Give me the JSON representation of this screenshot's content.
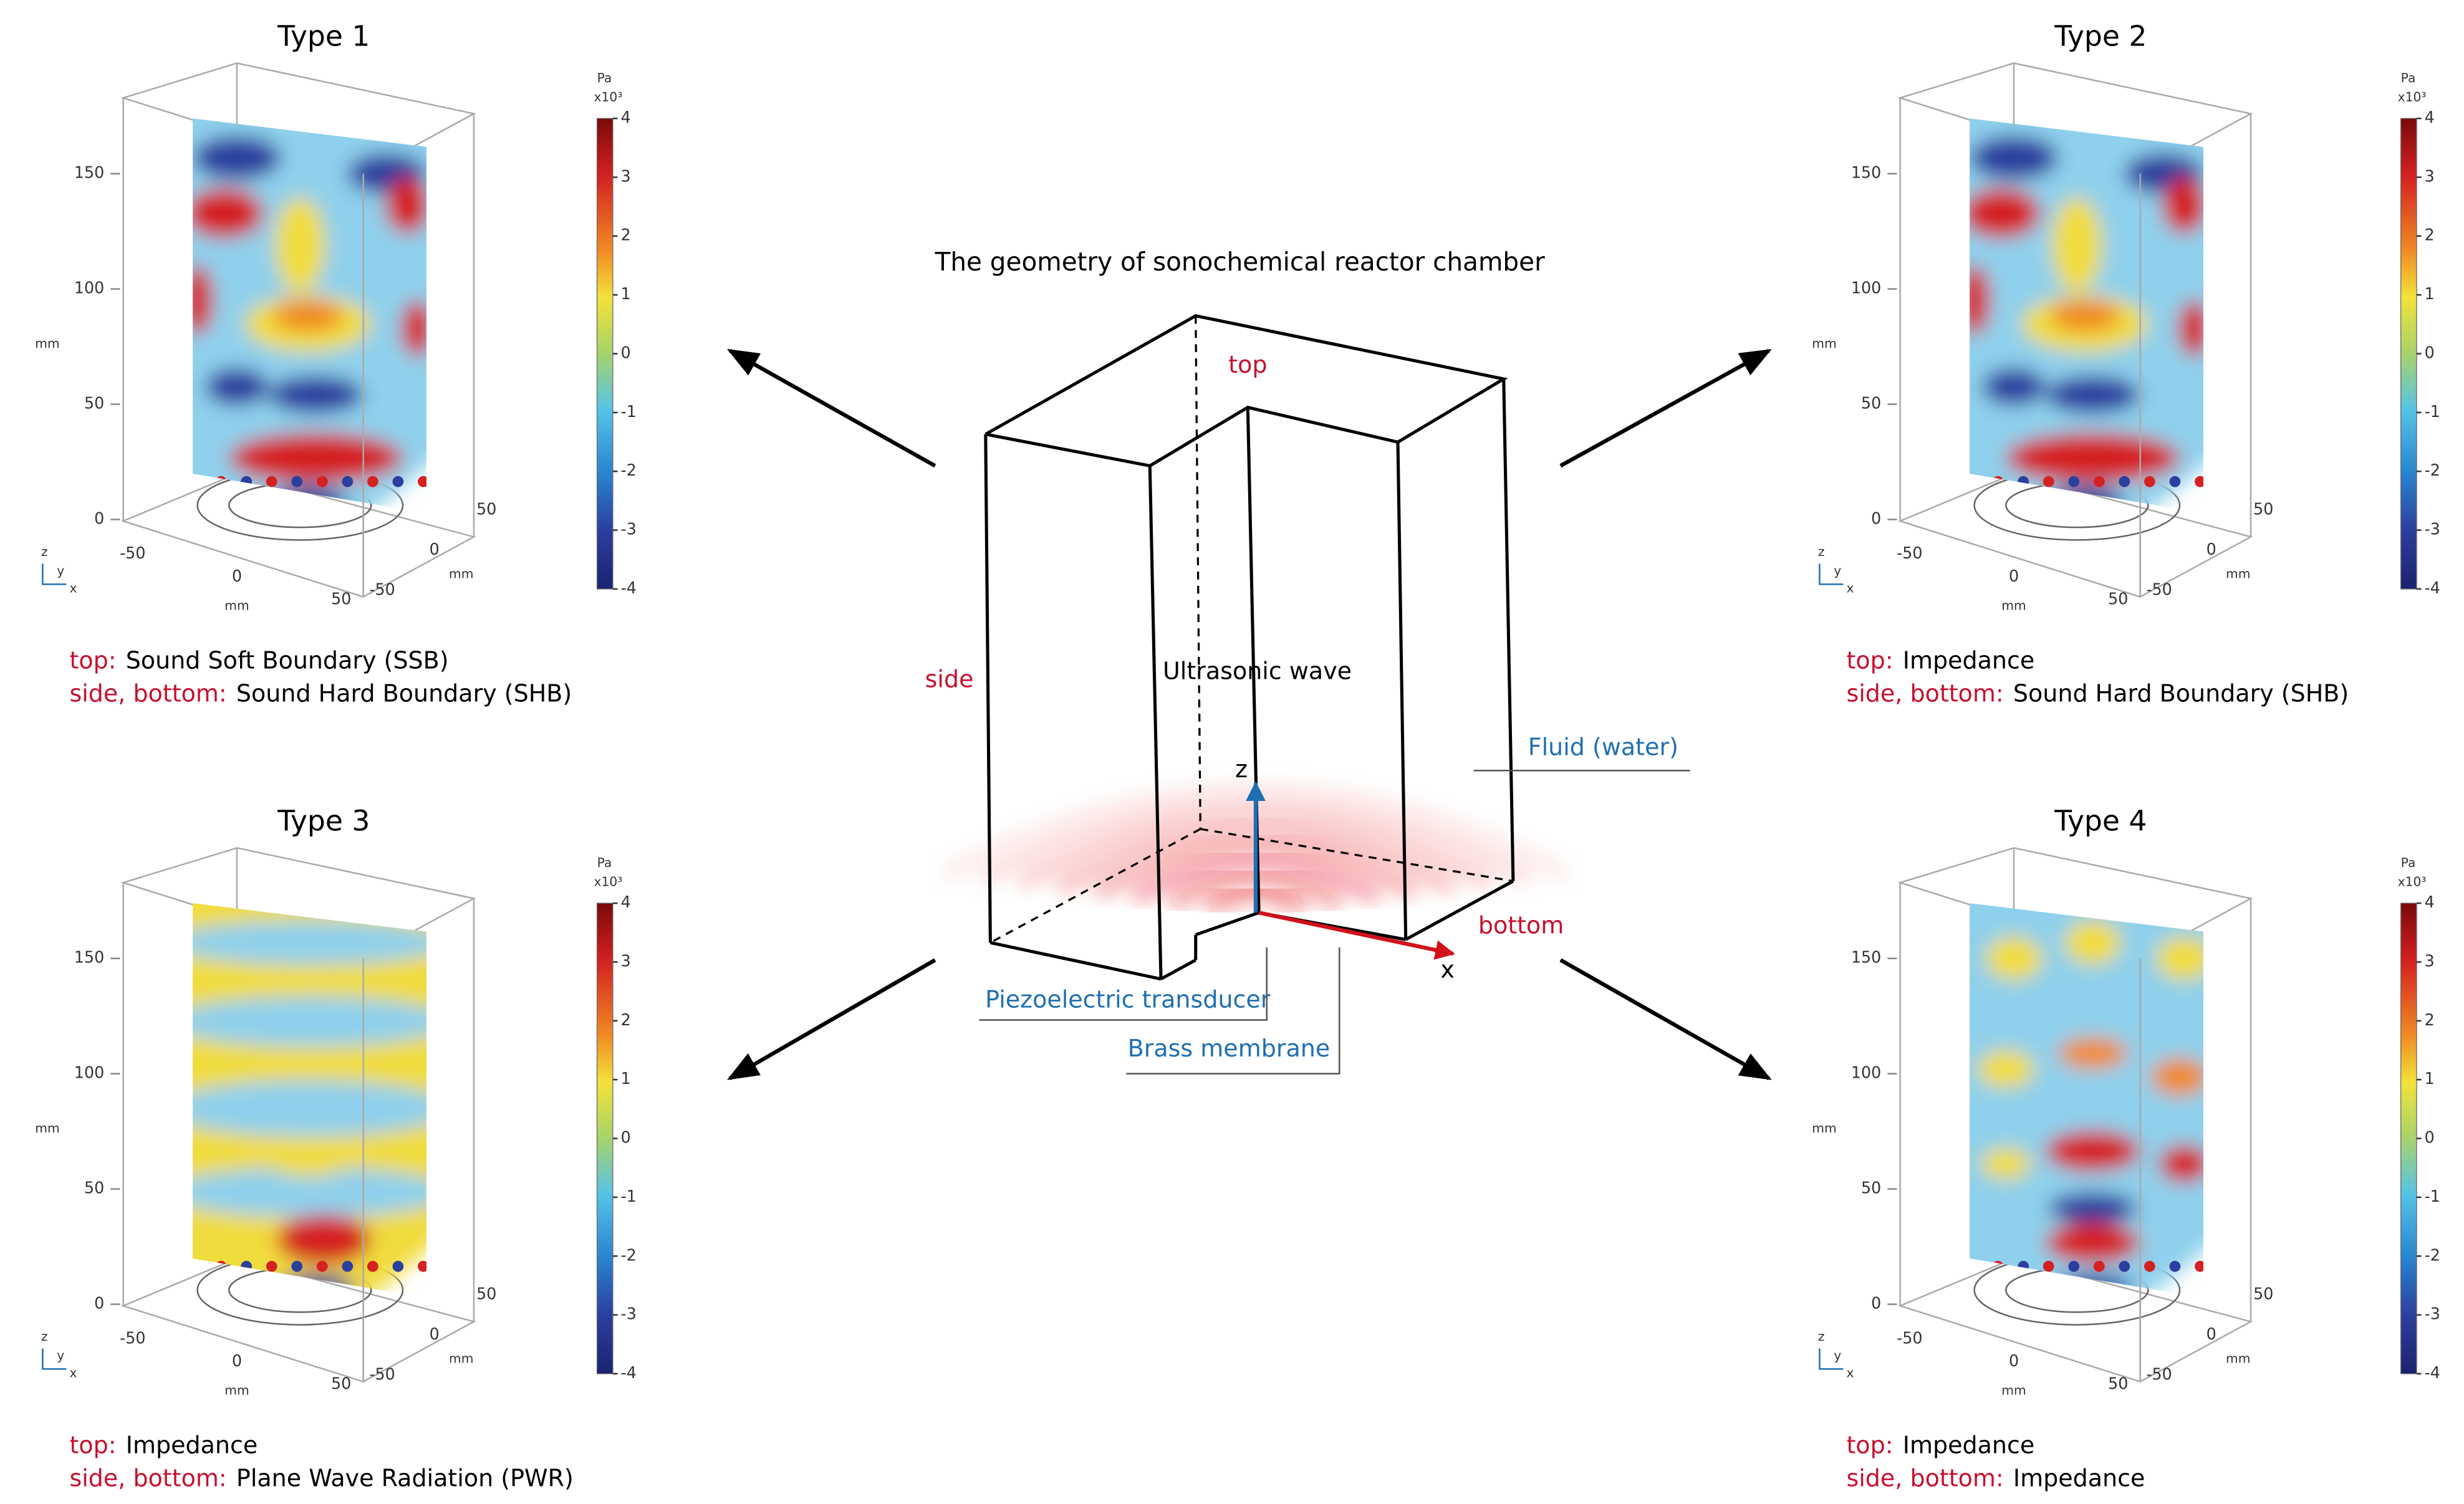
{
  "center": {
    "title": "The geometry of sonochemical reactor chamber",
    "top": "top",
    "side": "side",
    "bottom": "bottom",
    "wave": "Ultrasonic wave",
    "fluid": "Fluid (water)",
    "z": "z",
    "x": "x",
    "piezo": "Piezoelectric transducer",
    "brass": "Brass membrane"
  },
  "plot": {
    "colorbar_unit": "Pa",
    "colorbar_scale": "x10³",
    "colorbar_ticks": [
      4,
      3,
      2,
      1,
      0,
      -1,
      -2,
      -3,
      -4
    ],
    "z_ticks": [
      0,
      50,
      100,
      150
    ],
    "x_ticks": [
      -50,
      0,
      50
    ],
    "y_ticks": [
      50,
      0,
      -50
    ],
    "axis_unit": "mm",
    "triad": [
      "z",
      "y",
      "x"
    ]
  },
  "panels": [
    {
      "title": "Type 1",
      "conditions": [
        {
          "key": "top:",
          "value": "Sound Soft Boundary (SSB)"
        },
        {
          "key": "side, bottom:",
          "value": "Sound Hard Boundary (SHB)"
        }
      ]
    },
    {
      "title": "Type 2",
      "conditions": [
        {
          "key": "top:",
          "value": "Impedance"
        },
        {
          "key": "side, bottom:",
          "value": "Sound Hard Boundary (SHB)"
        }
      ]
    },
    {
      "title": "Type 3",
      "conditions": [
        {
          "key": "top:",
          "value": "Impedance"
        },
        {
          "key": "side, bottom:",
          "value": "Plane Wave Radiation (PWR)"
        }
      ]
    },
    {
      "title": "Type 4",
      "conditions": [
        {
          "key": "top:",
          "value": "Impedance"
        },
        {
          "key": "side, bottom:",
          "value": "Impedance"
        }
      ]
    }
  ]
}
